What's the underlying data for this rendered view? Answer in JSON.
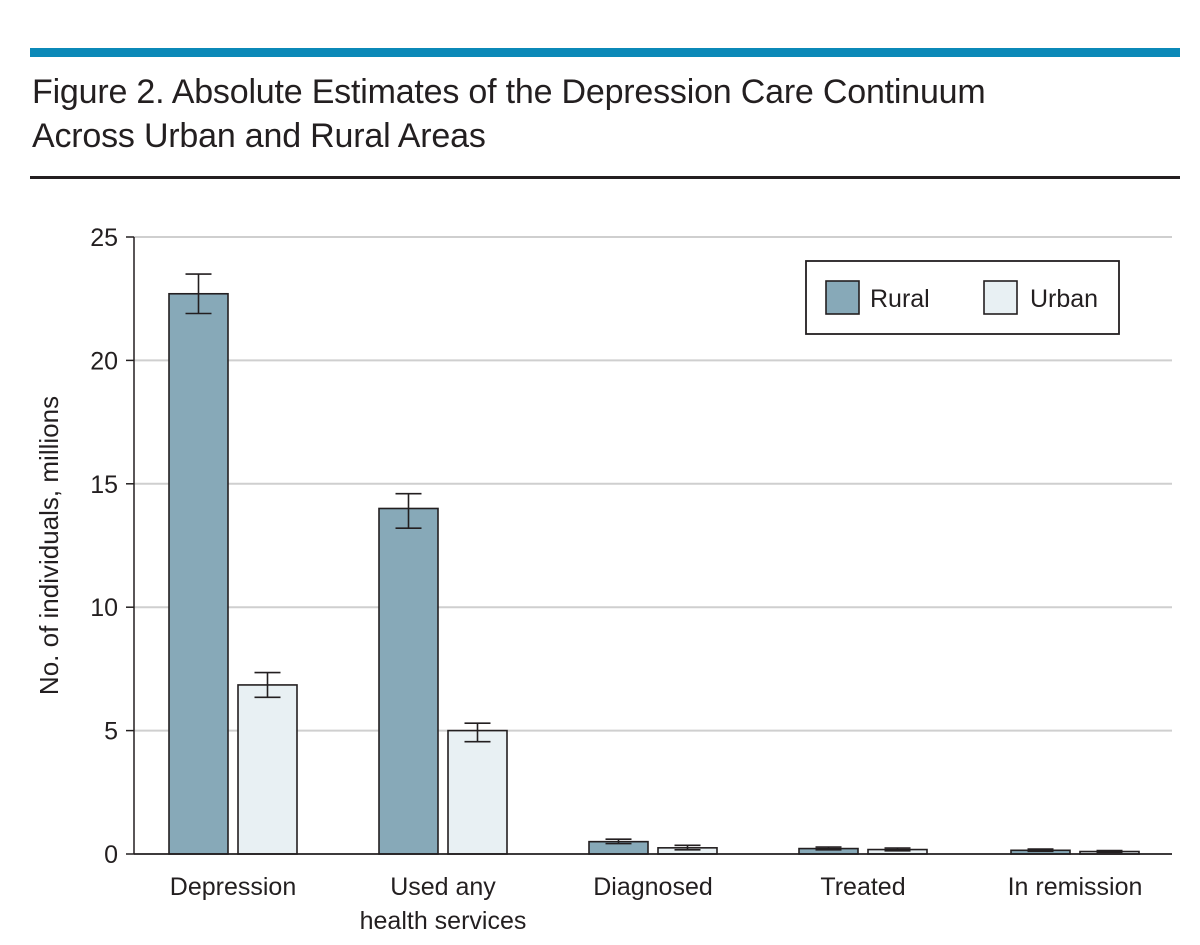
{
  "figure": {
    "title_line1": "Figure 2. Absolute Estimates of the Depression Care Continuum",
    "title_line2": "Across Urban and Rural Areas",
    "accent_color": "#0b89b8"
  },
  "chart_data": {
    "type": "bar",
    "title": "Figure 2. Absolute Estimates of the Depression Care Continuum Across Urban and Rural Areas",
    "xlabel": "",
    "ylabel": "No. of individuals, millions",
    "ylim": [
      0,
      25
    ],
    "yticks": [
      0,
      5,
      10,
      15,
      20,
      25
    ],
    "grid": true,
    "legend_position": "top-right",
    "categories": [
      [
        "Depression"
      ],
      [
        "Used any",
        "health services"
      ],
      [
        "Diagnosed"
      ],
      [
        "Treated"
      ],
      [
        "In remission"
      ]
    ],
    "series": [
      {
        "name": "Rural",
        "color": "#87a9b8",
        "values": [
          22.7,
          14.0,
          0.5,
          0.22,
          0.15
        ],
        "error_low": [
          21.9,
          13.2,
          0.42,
          0.17,
          0.11
        ],
        "error_high": [
          23.5,
          14.6,
          0.6,
          0.28,
          0.2
        ]
      },
      {
        "name": "Urban",
        "color": "#e8f0f3",
        "values": [
          6.85,
          5.0,
          0.25,
          0.18,
          0.1
        ],
        "error_low": [
          6.35,
          4.55,
          0.17,
          0.13,
          0.07
        ],
        "error_high": [
          7.35,
          5.3,
          0.35,
          0.24,
          0.14
        ]
      }
    ]
  }
}
